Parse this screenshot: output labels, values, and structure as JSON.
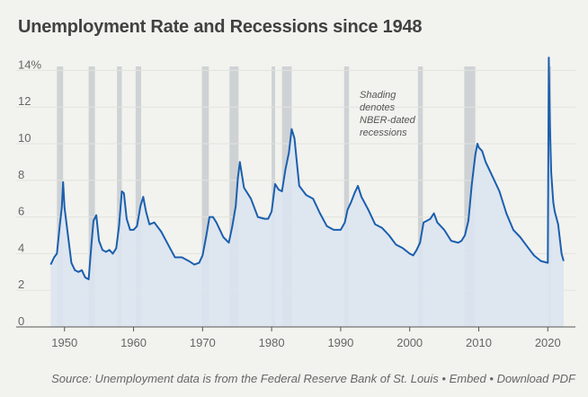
{
  "page": {
    "title": "Unemployment Rate and Recessions since 1948",
    "source_text": "Source: Unemployment data is from the Federal Reserve Bank of St. Louis",
    "separator": " • ",
    "embed_label": "Embed",
    "download_label": "Download PDF"
  },
  "colors": {
    "background": "#f2f2ee",
    "line": "#1b5fae",
    "area": "#dbe4f0",
    "recession": "#c8ccd0",
    "grid": "#e3e3de"
  },
  "chart_data": {
    "type": "area",
    "title": "Unemployment Rate and Recessions since 1948",
    "xlabel": "",
    "ylabel": "",
    "xlim": [
      1943,
      2024
    ],
    "ylim": [
      0,
      15
    ],
    "y_ticks": [
      0,
      2,
      4,
      6,
      8,
      10,
      12,
      14
    ],
    "y_tick_labels": [
      "0",
      "2",
      "4",
      "6",
      "8",
      "10",
      "12",
      "14%"
    ],
    "x_ticks": [
      1950,
      1960,
      1970,
      1980,
      1990,
      2000,
      2010,
      2020
    ],
    "x_tick_labels": [
      "1950",
      "1960",
      "1970",
      "1980",
      "1990",
      "2000",
      "2010",
      "2020"
    ],
    "grid": true,
    "annotation": [
      "Shading",
      "denotes",
      "NBER-dated",
      "recessions"
    ],
    "recessions": [
      [
        1948.9,
        1949.8
      ],
      [
        1953.5,
        1954.4
      ],
      [
        1957.6,
        1958.3
      ],
      [
        1960.3,
        1961.1
      ],
      [
        1969.9,
        1970.9
      ],
      [
        1973.9,
        1975.2
      ],
      [
        1980.0,
        1980.5
      ],
      [
        1981.5,
        1982.9
      ],
      [
        1990.5,
        1991.2
      ],
      [
        2001.2,
        2001.9
      ],
      [
        2007.9,
        2009.5
      ],
      [
        2020.1,
        2020.3
      ]
    ],
    "series": [
      {
        "x": [
          1948.0,
          1948.5,
          1948.9,
          1949.3,
          1949.6,
          1949.8,
          1950.0,
          1950.5,
          1951.0,
          1951.5,
          1952.0,
          1952.5,
          1953.0,
          1953.5,
          1953.9,
          1954.2,
          1954.6,
          1955.0,
          1955.5,
          1956.0,
          1956.5,
          1957.0,
          1957.5,
          1957.9,
          1958.3,
          1958.6,
          1959.0,
          1959.5,
          1960.0,
          1960.5,
          1961.0,
          1961.4,
          1961.8,
          1962.3,
          1963.0,
          1964.0,
          1965.0,
          1966.0,
          1967.0,
          1968.0,
          1968.8,
          1969.5,
          1970.0,
          1970.5,
          1971.0,
          1971.5,
          1972.0,
          1973.0,
          1973.8,
          1974.3,
          1974.8,
          1975.1,
          1975.4,
          1976.0,
          1977.0,
          1978.0,
          1979.0,
          1979.5,
          1980.0,
          1980.5,
          1981.0,
          1981.5,
          1982.0,
          1982.5,
          1982.9,
          1983.3,
          1984.0,
          1985.0,
          1986.0,
          1987.0,
          1988.0,
          1989.0,
          1990.0,
          1990.6,
          1991.0,
          1991.5,
          1992.0,
          1992.5,
          1993.0,
          1994.0,
          1995.0,
          1996.0,
          1997.0,
          1998.0,
          1999.0,
          2000.0,
          2000.5,
          2001.0,
          2001.5,
          2002.0,
          2002.5,
          2003.0,
          2003.5,
          2004.0,
          2005.0,
          2006.0,
          2007.0,
          2007.5,
          2008.0,
          2008.5,
          2009.0,
          2009.5,
          2009.8,
          2010.0,
          2010.5,
          2011.0,
          2012.0,
          2013.0,
          2014.0,
          2015.0,
          2016.0,
          2017.0,
          2018.0,
          2019.0,
          2020.0,
          2020.15,
          2020.3,
          2020.5,
          2020.8,
          2021.0,
          2021.5,
          2022.0,
          2022.3
        ],
        "values": [
          3.4,
          3.8,
          4.0,
          5.5,
          6.5,
          7.9,
          6.5,
          5.0,
          3.5,
          3.1,
          3.0,
          3.1,
          2.7,
          2.6,
          4.5,
          5.8,
          6.1,
          4.7,
          4.2,
          4.1,
          4.2,
          4.0,
          4.3,
          5.5,
          7.4,
          7.3,
          5.9,
          5.3,
          5.3,
          5.5,
          6.6,
          7.1,
          6.3,
          5.6,
          5.7,
          5.2,
          4.5,
          3.8,
          3.8,
          3.6,
          3.4,
          3.5,
          3.9,
          4.9,
          6.0,
          6.0,
          5.7,
          4.9,
          4.6,
          5.5,
          6.6,
          8.1,
          9.0,
          7.6,
          7.0,
          6.0,
          5.9,
          5.9,
          6.3,
          7.8,
          7.5,
          7.4,
          8.6,
          9.5,
          10.8,
          10.3,
          7.7,
          7.2,
          7.0,
          6.2,
          5.5,
          5.3,
          5.3,
          5.7,
          6.4,
          6.8,
          7.3,
          7.7,
          7.1,
          6.4,
          5.6,
          5.4,
          5.0,
          4.5,
          4.3,
          4.0,
          3.9,
          4.2,
          4.6,
          5.7,
          5.8,
          5.9,
          6.2,
          5.7,
          5.3,
          4.7,
          4.6,
          4.7,
          5.0,
          5.8,
          7.8,
          9.4,
          10.0,
          9.8,
          9.6,
          9.0,
          8.2,
          7.4,
          6.2,
          5.3,
          4.9,
          4.4,
          3.9,
          3.6,
          3.5,
          14.7,
          11.1,
          8.4,
          6.8,
          6.3,
          5.6,
          4.0,
          3.6
        ]
      }
    ]
  }
}
